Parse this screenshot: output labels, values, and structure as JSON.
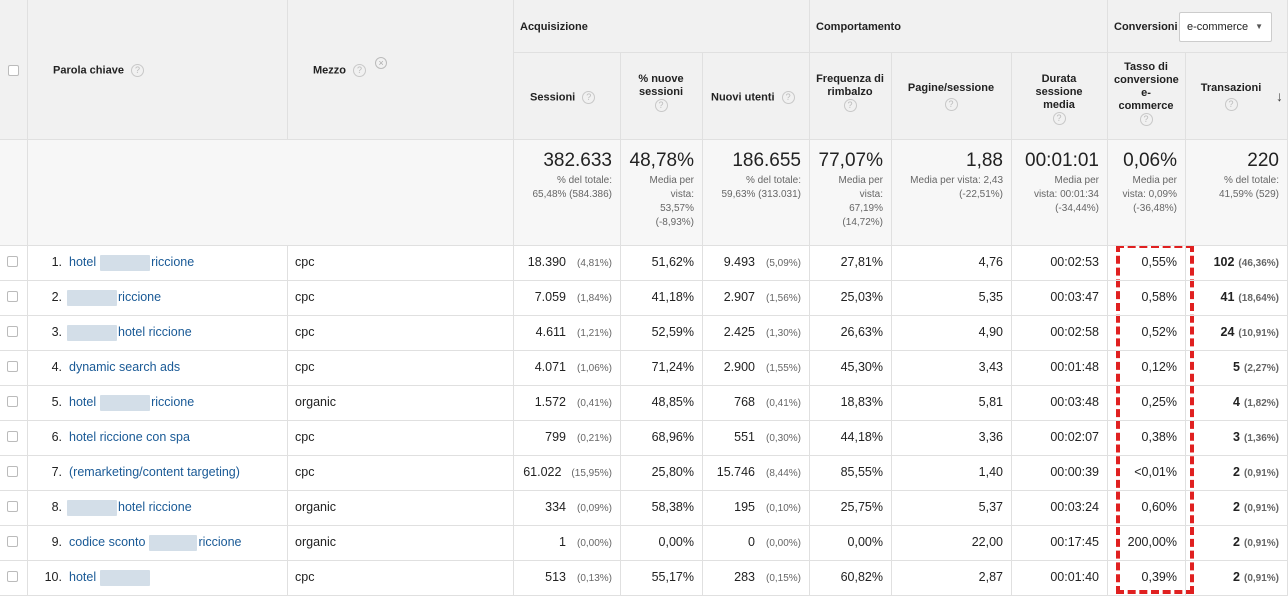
{
  "header": {
    "keyword_col": "Parola chiave",
    "medium_col": "Mezzo",
    "acquisition_group": "Acquisizione",
    "behavior_group": "Comportamento",
    "conversions_group": "Conversioni",
    "conversion_select_value": "e-commerce",
    "help_glyph": "?",
    "remove_glyph": "×",
    "sort_glyph": "↓",
    "dropdown_glyph": "▼",
    "columns": {
      "sessions": "Sessioni",
      "new_sessions": "% nuove sessioni",
      "new_users": "Nuovi utenti",
      "bounce": "Frequenza di rimbalzo",
      "pages": "Pagine/sessione",
      "duration": "Durata sessione media",
      "conv_rate": "Tasso di conversione e-commerce",
      "transactions": "Transazioni"
    }
  },
  "totals": {
    "sessions": {
      "main": "382.633",
      "sub": "% del totale:\n65,48% (584.386)"
    },
    "new_sessions": {
      "main": "48,78%",
      "sub": "Media per\nvista:\n53,57%\n(-8,93%)"
    },
    "new_users": {
      "main": "186.655",
      "sub": "% del totale:\n59,63% (313.031)"
    },
    "bounce": {
      "main": "77,07%",
      "sub": "Media per\nvista:\n67,19%\n(14,72%)"
    },
    "pages": {
      "main": "1,88",
      "sub": "Media per vista: 2,43\n(-22,51%)"
    },
    "duration": {
      "main": "00:01:01",
      "sub": "Media per\nvista: 00:01:34\n(-34,44%)"
    },
    "conv_rate": {
      "main": "0,06%",
      "sub": "Media per\nvista: 0,09%\n(-36,48%)"
    },
    "transactions": {
      "main": "220",
      "sub": "% del totale:\n41,59% (529)"
    }
  },
  "rows": [
    {
      "idx": "1.",
      "kw_a": "hotel",
      "kw_b": "riccione",
      "medium": "cpc",
      "sessions": "18.390",
      "sessions_pct": "(4,81%)",
      "new_sessions": "51,62%",
      "new_users": "9.493",
      "new_users_pct": "(5,09%)",
      "bounce": "27,81%",
      "pages": "4,76",
      "duration": "00:02:53",
      "conv_rate": "0,55%",
      "transactions": "102",
      "transactions_pct": "(46,36%)"
    },
    {
      "idx": "2.",
      "kw_a": "",
      "kw_b": "riccione",
      "medium": "cpc",
      "sessions": "7.059",
      "sessions_pct": "(1,84%)",
      "new_sessions": "41,18%",
      "new_users": "2.907",
      "new_users_pct": "(1,56%)",
      "bounce": "25,03%",
      "pages": "5,35",
      "duration": "00:03:47",
      "conv_rate": "0,58%",
      "transactions": "41",
      "transactions_pct": "(18,64%)"
    },
    {
      "idx": "3.",
      "kw_a": "",
      "kw_b": "hotel riccione",
      "medium": "cpc",
      "sessions": "4.611",
      "sessions_pct": "(1,21%)",
      "new_sessions": "52,59%",
      "new_users": "2.425",
      "new_users_pct": "(1,30%)",
      "bounce": "26,63%",
      "pages": "4,90",
      "duration": "00:02:58",
      "conv_rate": "0,52%",
      "transactions": "24",
      "transactions_pct": "(10,91%)"
    },
    {
      "idx": "4.",
      "kw_a": "dynamic search ads",
      "kw_b": "",
      "medium": "cpc",
      "sessions": "4.071",
      "sessions_pct": "(1,06%)",
      "new_sessions": "71,24%",
      "new_users": "2.900",
      "new_users_pct": "(1,55%)",
      "bounce": "45,30%",
      "pages": "3,43",
      "duration": "00:01:48",
      "conv_rate": "0,12%",
      "transactions": "5",
      "transactions_pct": "(2,27%)"
    },
    {
      "idx": "5.",
      "kw_a": "hotel",
      "kw_b": "riccione",
      "medium": "organic",
      "sessions": "1.572",
      "sessions_pct": "(0,41%)",
      "new_sessions": "48,85%",
      "new_users": "768",
      "new_users_pct": "(0,41%)",
      "bounce": "18,83%",
      "pages": "5,81",
      "duration": "00:03:48",
      "conv_rate": "0,25%",
      "transactions": "4",
      "transactions_pct": "(1,82%)"
    },
    {
      "idx": "6.",
      "kw_a": "hotel riccione con spa",
      "kw_b": "",
      "medium": "cpc",
      "sessions": "799",
      "sessions_pct": "(0,21%)",
      "new_sessions": "68,96%",
      "new_users": "551",
      "new_users_pct": "(0,30%)",
      "bounce": "44,18%",
      "pages": "3,36",
      "duration": "00:02:07",
      "conv_rate": "0,38%",
      "transactions": "3",
      "transactions_pct": "(1,36%)"
    },
    {
      "idx": "7.",
      "kw_a": "(remarketing/content targeting)",
      "kw_b": "",
      "medium": "cpc",
      "sessions": "61.022",
      "sessions_pct": "(15,95%)",
      "new_sessions": "25,80%",
      "new_users": "15.746",
      "new_users_pct": "(8,44%)",
      "bounce": "85,55%",
      "pages": "1,40",
      "duration": "00:00:39",
      "conv_rate": "<0,01%",
      "transactions": "2",
      "transactions_pct": "(0,91%)"
    },
    {
      "idx": "8.",
      "kw_a": "",
      "kw_b": "hotel riccione",
      "medium": "organic",
      "sessions": "334",
      "sessions_pct": "(0,09%)",
      "new_sessions": "58,38%",
      "new_users": "195",
      "new_users_pct": "(0,10%)",
      "bounce": "25,75%",
      "pages": "5,37",
      "duration": "00:03:24",
      "conv_rate": "0,60%",
      "transactions": "2",
      "transactions_pct": "(0,91%)"
    },
    {
      "idx": "9.",
      "kw_a": "codice sconto",
      "kw_b": "riccione",
      "medium": "organic",
      "sessions": "1",
      "sessions_pct": "(0,00%)",
      "new_sessions": "0,00%",
      "new_users": "0",
      "new_users_pct": "(0,00%)",
      "bounce": "0,00%",
      "pages": "22,00",
      "duration": "00:17:45",
      "conv_rate": "200,00%",
      "transactions": "2",
      "transactions_pct": "(0,91%)"
    },
    {
      "idx": "10.",
      "kw_a": "hotel",
      "kw_b": "",
      "medium": "cpc",
      "sessions": "513",
      "sessions_pct": "(0,13%)",
      "new_sessions": "55,17%",
      "new_users": "283",
      "new_users_pct": "(0,15%)",
      "bounce": "60,82%",
      "pages": "2,87",
      "duration": "00:01:40",
      "conv_rate": "0,39%",
      "transactions": "2",
      "transactions_pct": "(0,91%)"
    }
  ],
  "colors": {
    "link": "#1a5a96",
    "header_bg": "#f1f1f1",
    "highlight": "#e02020"
  }
}
